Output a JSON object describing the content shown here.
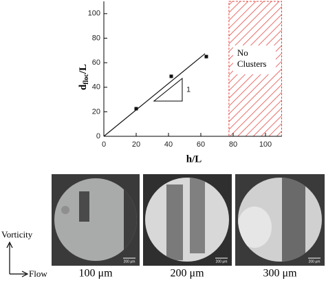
{
  "chart_data": {
    "type": "scatter",
    "xlabel": "h/L",
    "ylabel": "d",
    "ylabel_sub": "floc",
    "ylabel_suffix": "/L",
    "xlim": [
      0,
      110
    ],
    "ylim": [
      0,
      110
    ],
    "xticks": [
      0,
      20,
      40,
      60,
      80,
      100
    ],
    "yticks": [
      0,
      20,
      40,
      60,
      80,
      100
    ],
    "points": {
      "x": [
        20,
        41.7,
        63.4
      ],
      "y": [
        22.5,
        48.9,
        65
      ],
      "color": "#111111"
    },
    "fit_line": {
      "x": [
        0,
        62.6
      ],
      "y": [
        0,
        67.4
      ],
      "color": "#111111"
    },
    "slope_triangle": {
      "x": [
        31,
        48.5
      ],
      "y": [
        28.7,
        47.2
      ],
      "label": "1"
    },
    "shaded_region": {
      "xlim": [
        77.4,
        110
      ],
      "label_lines": [
        "No",
        "Clusters"
      ],
      "color": "#e0403a"
    }
  },
  "images": [
    {
      "label": "100 μm",
      "scale_bar": "200 μm"
    },
    {
      "label": "200 μm",
      "scale_bar": "200 μm"
    },
    {
      "label": "300 μm",
      "scale_bar": "200 μm"
    }
  ],
  "axes_legend": {
    "vertical": "Vorticity",
    "horizontal": "Flow"
  }
}
